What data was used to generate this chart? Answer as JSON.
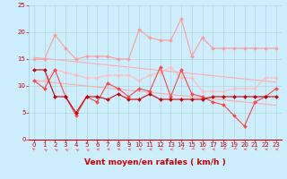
{
  "x": [
    0,
    1,
    2,
    3,
    4,
    5,
    6,
    7,
    8,
    9,
    10,
    11,
    12,
    13,
    14,
    15,
    16,
    17,
    18,
    19,
    20,
    21,
    22,
    23
  ],
  "series": [
    {
      "name": "trend_upper",
      "color": "#ffaaaa",
      "linewidth": 0.8,
      "marker": null,
      "markersize": 0,
      "values": [
        15.3,
        15.1,
        14.9,
        14.7,
        14.5,
        14.3,
        14.1,
        13.9,
        13.7,
        13.5,
        13.3,
        13.1,
        12.9,
        12.7,
        12.5,
        12.3,
        12.1,
        11.9,
        11.7,
        11.5,
        11.3,
        11.1,
        10.9,
        10.7
      ]
    },
    {
      "name": "trend_lower",
      "color": "#ffaaaa",
      "linewidth": 0.8,
      "marker": null,
      "markersize": 0,
      "values": [
        11.0,
        10.8,
        10.6,
        10.4,
        10.2,
        10.0,
        9.8,
        9.6,
        9.4,
        9.2,
        9.0,
        8.8,
        8.6,
        8.4,
        8.2,
        8.0,
        7.8,
        7.6,
        7.4,
        7.2,
        7.0,
        6.8,
        6.6,
        6.4
      ]
    },
    {
      "name": "gust_upper",
      "color": "#ff9999",
      "linewidth": 0.8,
      "marker": "D",
      "markersize": 2.0,
      "values": [
        15.0,
        15.0,
        19.5,
        17.0,
        15.0,
        15.5,
        15.5,
        15.5,
        15.0,
        15.0,
        20.5,
        19.0,
        18.5,
        18.5,
        22.5,
        15.5,
        19.0,
        17.0,
        17.0,
        17.0,
        17.0,
        17.0,
        17.0,
        17.0
      ]
    },
    {
      "name": "gust_lower",
      "color": "#ffbbbb",
      "linewidth": 0.8,
      "marker": "D",
      "markersize": 2.0,
      "values": [
        11.0,
        11.0,
        13.0,
        12.5,
        12.0,
        11.5,
        11.5,
        12.0,
        12.0,
        12.0,
        11.0,
        12.0,
        12.5,
        13.5,
        11.5,
        11.5,
        9.0,
        9.0,
        9.0,
        9.5,
        9.5,
        9.5,
        11.5,
        11.5
      ]
    },
    {
      "name": "wind_mean_dashed",
      "color": "#ff4444",
      "linewidth": 0.8,
      "marker": "D",
      "markersize": 2.0,
      "values": [
        11.0,
        9.5,
        13.0,
        8.0,
        4.5,
        8.0,
        7.0,
        10.5,
        9.5,
        8.0,
        9.5,
        9.0,
        13.5,
        8.0,
        13.0,
        8.5,
        8.0,
        7.0,
        6.5,
        4.5,
        2.5,
        7.0,
        8.0,
        9.5
      ]
    },
    {
      "name": "wind_mean_solid",
      "color": "#cc0000",
      "linewidth": 0.8,
      "marker": "D",
      "markersize": 2.0,
      "values": [
        13.0,
        13.0,
        8.0,
        8.0,
        5.0,
        8.0,
        8.0,
        7.5,
        8.5,
        7.5,
        7.5,
        8.5,
        7.5,
        7.5,
        7.5,
        7.5,
        7.5,
        8.0,
        8.0,
        8.0,
        8.0,
        8.0,
        8.0,
        8.0
      ]
    }
  ],
  "xlabel": "Vent moyen/en rafales ( km/h )",
  "xlim": [
    -0.5,
    23.5
  ],
  "ylim": [
    0,
    25
  ],
  "yticks": [
    0,
    5,
    10,
    15,
    20,
    25
  ],
  "xticks": [
    0,
    1,
    2,
    3,
    4,
    5,
    6,
    7,
    8,
    9,
    10,
    11,
    12,
    13,
    14,
    15,
    16,
    17,
    18,
    19,
    20,
    21,
    22,
    23
  ],
  "background_color": "#cceeff",
  "grid_color": "#aacccc",
  "arrow_color": "#ff6666",
  "xlabel_color": "#cc0000",
  "xlabel_fontsize": 6.5,
  "tick_fontsize": 5,
  "arrow_rotations": [
    210,
    225,
    225,
    225,
    225,
    225,
    270,
    270,
    270,
    270,
    270,
    270,
    270,
    270,
    315,
    315,
    270,
    270,
    315,
    315,
    270,
    270,
    270,
    270
  ]
}
